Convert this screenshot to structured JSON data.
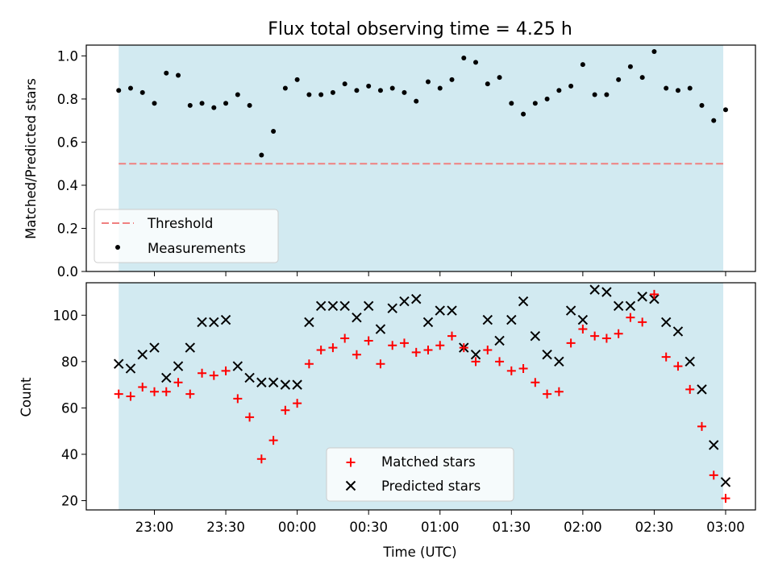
{
  "title": "Flux total observing time = 4.25 h",
  "colors": {
    "shade": "#add8e6",
    "threshold": "#f08080",
    "measurement": "#000000",
    "matched": "#ff0000",
    "predicted": "#000000"
  },
  "chart_data": [
    {
      "type": "scatter",
      "ylabel": "Matched/Predicted stars",
      "ylim": [
        0,
        1.05
      ],
      "yticks": [
        0.0,
        0.2,
        0.4,
        0.6,
        0.8,
        1.0
      ],
      "ytick_labels": [
        "0.0",
        "0.2",
        "0.4",
        "0.6",
        "0.8",
        "1.0"
      ],
      "xlim_hours": [
        22.33,
        3.2
      ],
      "shaded_span": [
        "22:45",
        "02:59"
      ],
      "threshold": {
        "name": "Threshold",
        "value": 0.5
      },
      "legend_position": "lower-left",
      "series": [
        {
          "name": "Measurements",
          "x": [
            "22:45",
            "22:50",
            "22:55",
            "23:00",
            "23:05",
            "23:10",
            "23:15",
            "23:20",
            "23:25",
            "23:30",
            "23:35",
            "23:40",
            "23:45",
            "23:50",
            "23:55",
            "00:00",
            "00:05",
            "00:10",
            "00:15",
            "00:20",
            "00:25",
            "00:30",
            "00:35",
            "00:40",
            "00:45",
            "00:50",
            "00:55",
            "01:00",
            "01:05",
            "01:10",
            "01:15",
            "01:20",
            "01:25",
            "01:30",
            "01:35",
            "01:40",
            "01:45",
            "01:50",
            "01:55",
            "02:00",
            "02:05",
            "02:10",
            "02:15",
            "02:20",
            "02:25",
            "02:30",
            "02:35",
            "02:40",
            "02:45",
            "02:50",
            "02:55",
            "03:00"
          ],
          "y": [
            0.84,
            0.85,
            0.83,
            0.78,
            0.92,
            0.91,
            0.77,
            0.78,
            0.76,
            0.78,
            0.82,
            0.77,
            0.54,
            0.65,
            0.85,
            0.89,
            0.82,
            0.82,
            0.83,
            0.87,
            0.84,
            0.86,
            0.84,
            0.85,
            0.83,
            0.79,
            0.88,
            0.85,
            0.89,
            0.99,
            0.97,
            0.87,
            0.9,
            0.78,
            0.73,
            0.78,
            0.8,
            0.84,
            0.86,
            0.96,
            0.82,
            0.82,
            0.89,
            0.95,
            0.9,
            1.02,
            0.85,
            0.84,
            0.85,
            0.77,
            0.7,
            0.75
          ]
        }
      ]
    },
    {
      "type": "scatter",
      "xlabel": "Time (UTC)",
      "ylabel": "Count",
      "ylim": [
        16,
        114
      ],
      "yticks": [
        20,
        40,
        60,
        80,
        100
      ],
      "ytick_labels": [
        "20",
        "40",
        "60",
        "80",
        "100"
      ],
      "xticks": [
        "23:00",
        "23:30",
        "00:00",
        "00:30",
        "01:00",
        "01:30",
        "02:00",
        "02:30",
        "03:00"
      ],
      "shaded_span": [
        "22:45",
        "02:59"
      ],
      "legend_position": "lower-center",
      "series": [
        {
          "name": "Matched stars",
          "x": [
            "22:45",
            "22:50",
            "22:55",
            "23:00",
            "23:05",
            "23:10",
            "23:15",
            "23:20",
            "23:25",
            "23:30",
            "23:35",
            "23:40",
            "23:45",
            "23:50",
            "23:55",
            "00:00",
            "00:05",
            "00:10",
            "00:15",
            "00:20",
            "00:25",
            "00:30",
            "00:35",
            "00:40",
            "00:45",
            "00:50",
            "00:55",
            "01:00",
            "01:05",
            "01:10",
            "01:15",
            "01:20",
            "01:25",
            "01:30",
            "01:35",
            "01:40",
            "01:45",
            "01:50",
            "01:55",
            "02:00",
            "02:05",
            "02:10",
            "02:15",
            "02:20",
            "02:25",
            "02:30",
            "02:35",
            "02:40",
            "02:45",
            "02:50",
            "02:55",
            "03:00"
          ],
          "y": [
            66,
            65,
            69,
            67,
            67,
            71,
            66,
            75,
            74,
            76,
            64,
            56,
            38,
            46,
            59,
            62,
            79,
            85,
            86,
            90,
            83,
            89,
            79,
            87,
            88,
            84,
            85,
            87,
            91,
            86,
            80,
            85,
            80,
            76,
            77,
            71,
            66,
            67,
            88,
            94,
            91,
            90,
            92,
            99,
            97,
            109,
            82,
            78,
            68,
            52,
            31,
            21
          ]
        },
        {
          "name": "Predicted stars",
          "x": [
            "22:45",
            "22:50",
            "22:55",
            "23:00",
            "23:05",
            "23:10",
            "23:15",
            "23:20",
            "23:25",
            "23:30",
            "23:35",
            "23:40",
            "23:45",
            "23:50",
            "23:55",
            "00:00",
            "00:05",
            "00:10",
            "00:15",
            "00:20",
            "00:25",
            "00:30",
            "00:35",
            "00:40",
            "00:45",
            "00:50",
            "00:55",
            "01:00",
            "01:05",
            "01:10",
            "01:15",
            "01:20",
            "01:25",
            "01:30",
            "01:35",
            "01:40",
            "01:45",
            "01:50",
            "01:55",
            "02:00",
            "02:05",
            "02:10",
            "02:15",
            "02:20",
            "02:25",
            "02:30",
            "02:35",
            "02:40",
            "02:45",
            "02:50",
            "02:55",
            "03:00"
          ],
          "y": [
            79,
            77,
            83,
            86,
            73,
            78,
            86,
            97,
            97,
            98,
            78,
            73,
            71,
            71,
            70,
            70,
            97,
            104,
            104,
            104,
            99,
            104,
            94,
            103,
            106,
            107,
            97,
            102,
            102,
            86,
            83,
            98,
            89,
            98,
            106,
            91,
            83,
            80,
            102,
            98,
            111,
            110,
            104,
            104,
            108,
            107,
            97,
            93,
            80,
            68,
            44,
            28
          ]
        }
      ]
    }
  ]
}
